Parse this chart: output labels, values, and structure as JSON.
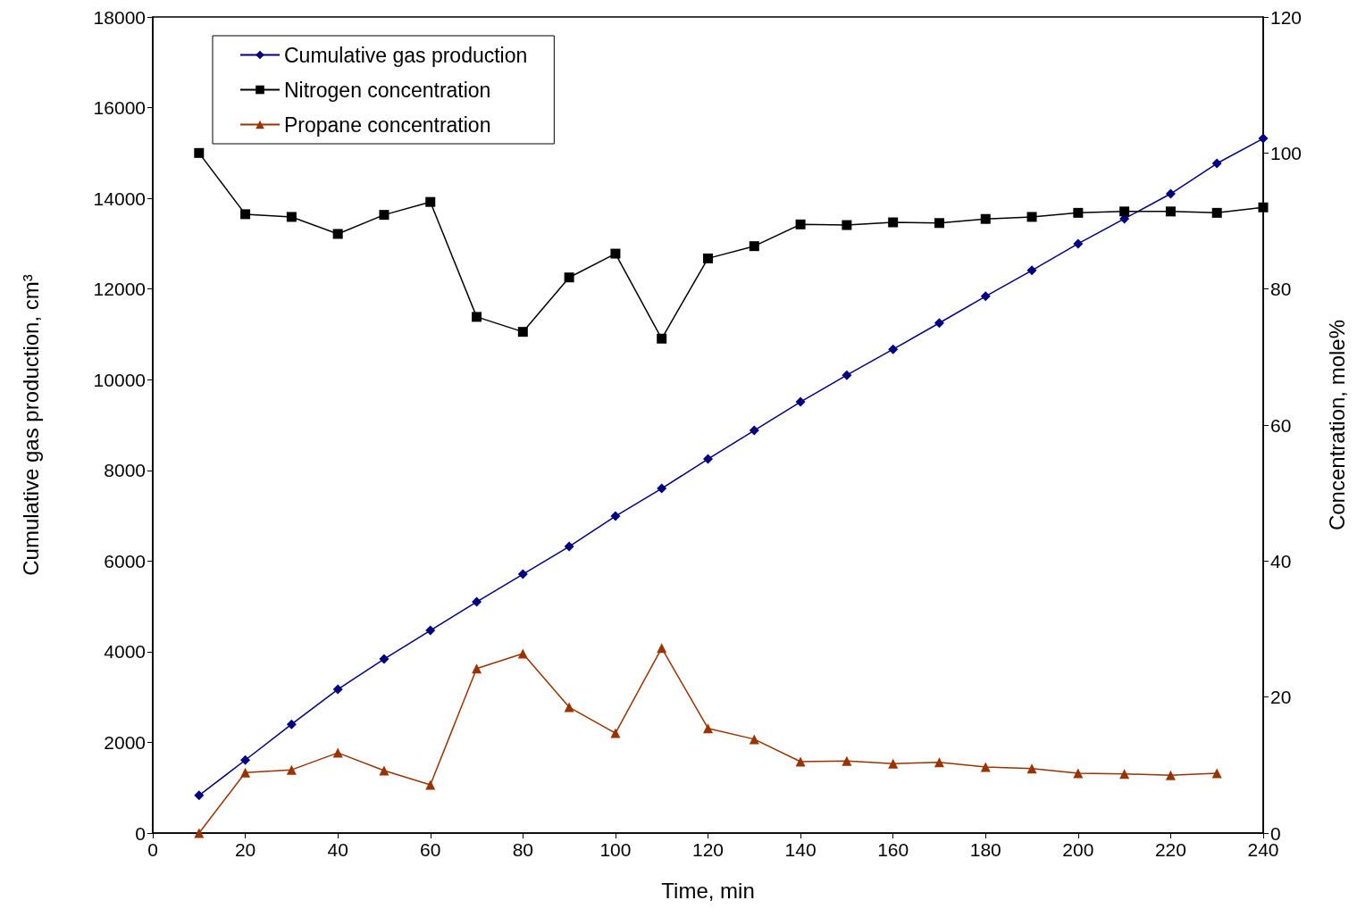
{
  "chart_data": {
    "type": "line",
    "xlabel": "Time, min",
    "ylabel": "Cumulative gas production, cm³",
    "y2label": "Concentration, mole%",
    "x": [
      10,
      20,
      30,
      40,
      50,
      60,
      70,
      80,
      90,
      100,
      110,
      120,
      130,
      140,
      150,
      160,
      170,
      180,
      190,
      200,
      210,
      220,
      230,
      240
    ],
    "xlim": [
      0,
      240
    ],
    "xticks": [
      0,
      20,
      40,
      60,
      80,
      100,
      120,
      140,
      160,
      180,
      200,
      220,
      240
    ],
    "ylim": [
      0,
      18000
    ],
    "yticks": [
      0,
      2000,
      4000,
      6000,
      8000,
      10000,
      12000,
      14000,
      16000,
      18000
    ],
    "y2lim": [
      0,
      120
    ],
    "y2ticks": [
      0,
      20,
      40,
      60,
      80,
      100,
      120
    ],
    "grid": false,
    "legend": "top left",
    "series": [
      {
        "name": "Cumulative gas production",
        "color": "#000080",
        "marker": "diamond",
        "values": [
          830,
          1610,
          2400,
          3170,
          3840,
          4470,
          5100,
          5710,
          6320,
          6990,
          7600,
          8250,
          8880,
          9510,
          10100,
          10670,
          11250,
          11840,
          12410,
          13000,
          13550,
          14100,
          14770,
          15320
        ]
      },
      {
        "name": "Nitrogen concentration",
        "color": "#000000",
        "marker": "square",
        "axis": "y2",
        "values": [
          100.0,
          91.0,
          90.6,
          88.1,
          90.9,
          92.8,
          75.9,
          73.7,
          81.7,
          85.2,
          72.7,
          84.5,
          86.3,
          89.5,
          89.4,
          89.8,
          89.7,
          90.3,
          90.6,
          91.2,
          91.4,
          91.4,
          91.2,
          92.0
        ]
      },
      {
        "name": "Propane concentration",
        "color": "#993300",
        "marker": "triangle",
        "axis": "y2",
        "values": [
          0,
          8.9,
          9.3,
          11.8,
          9.2,
          7.1,
          24.2,
          26.4,
          18.5,
          14.7,
          27.2,
          15.4,
          13.8,
          10.5,
          10.6,
          10.2,
          10.4,
          9.7,
          9.5,
          8.8,
          8.7,
          8.5,
          8.8,
          null
        ]
      }
    ]
  }
}
